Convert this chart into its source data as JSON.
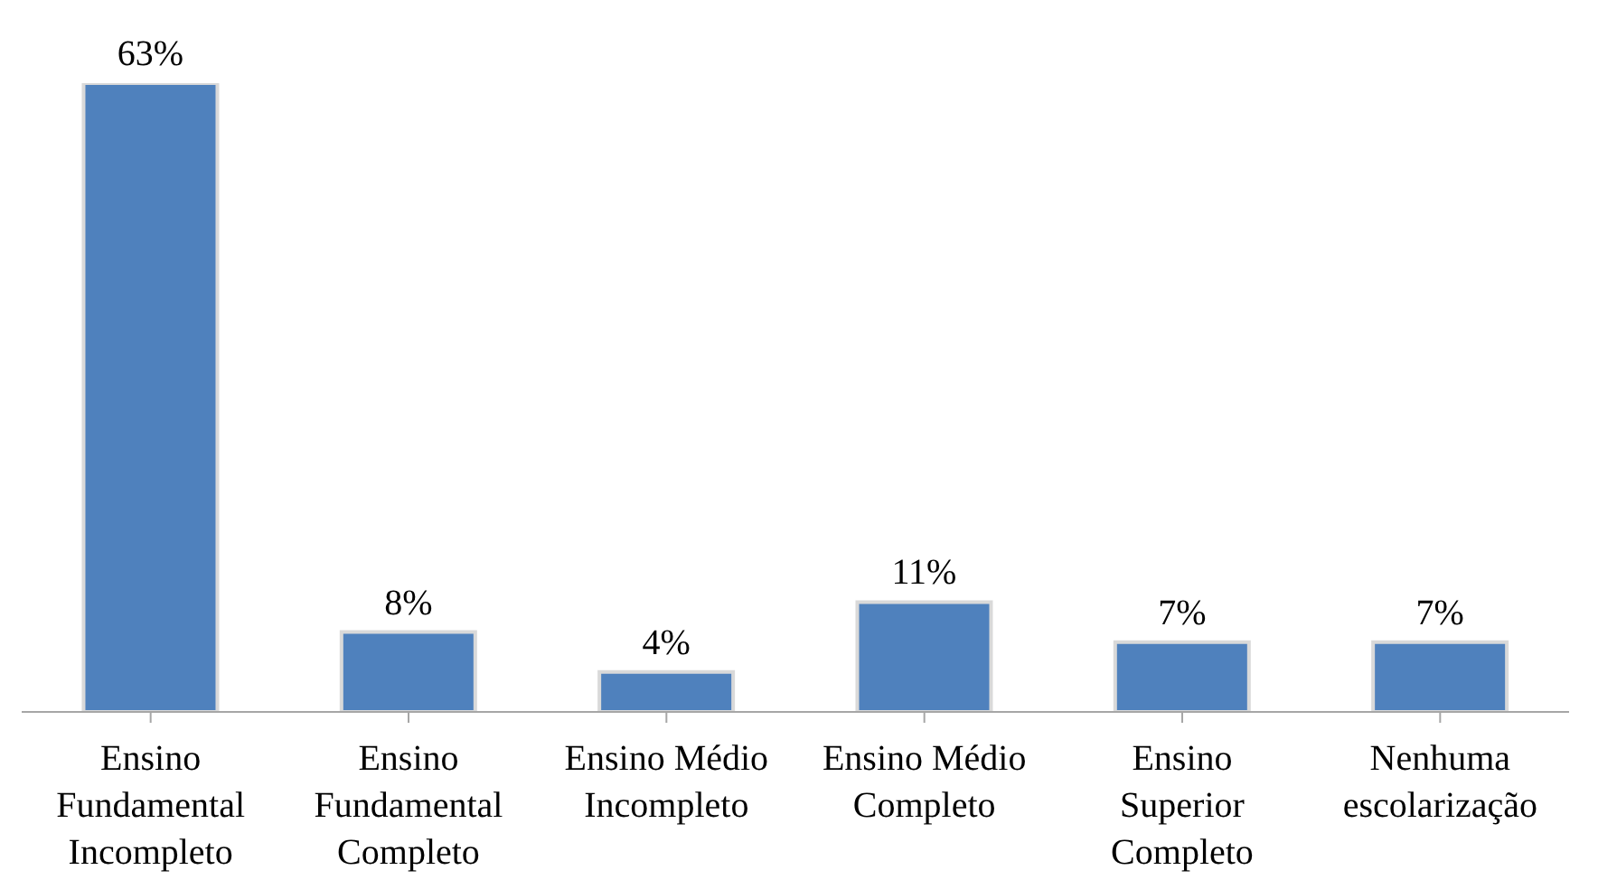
{
  "chart_data": {
    "type": "bar",
    "categories": [
      "Ensino Fundamental Incompleto",
      "Ensino Fundamental Completo",
      "Ensino Médio Incompleto",
      "Ensino Médio Completo",
      "Ensino Superior Completo",
      "Nenhuma escolarização"
    ],
    "values": [
      63,
      8,
      4,
      11,
      7,
      7
    ],
    "value_labels": [
      "63%",
      "8%",
      "4%",
      "11%",
      "7%",
      "7%"
    ],
    "color": "#4f81bd",
    "grid": false,
    "legend": false
  }
}
